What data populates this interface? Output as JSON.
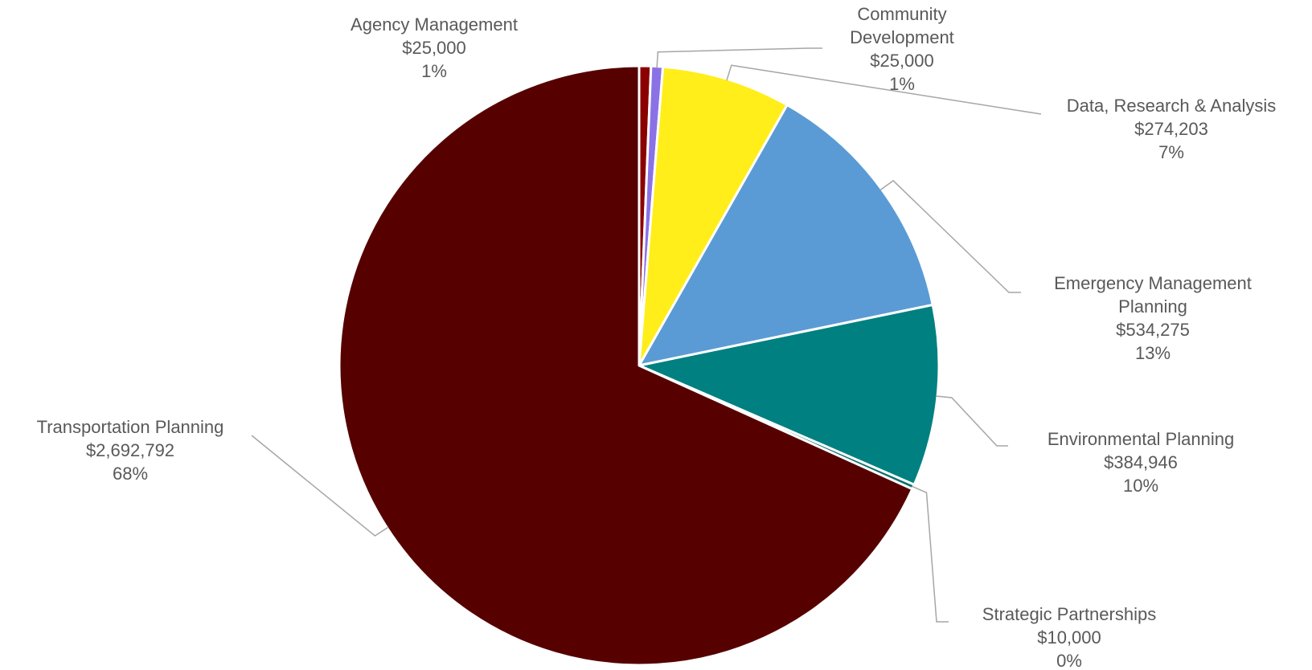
{
  "chart_data": {
    "type": "pie",
    "title": "",
    "start_angle_deg": 0,
    "slices": [
      {
        "name": "Agency Management",
        "value": 25000,
        "value_label": "$25,000",
        "percent_label": "1%",
        "color": "#8B0000"
      },
      {
        "name": "Community Development",
        "value": 25000,
        "value_label": "$25,000",
        "percent_label": "1%",
        "color": "#8A72E6"
      },
      {
        "name": "Data, Research & Analysis",
        "value": 274203,
        "value_label": "$274,203",
        "percent_label": "7%",
        "color": "#FFEE1A"
      },
      {
        "name": "Emergency Management Planning",
        "value": 534275,
        "value_label": "$534,275",
        "percent_label": "13%",
        "color": "#5B9BD5"
      },
      {
        "name": "Environmental Planning",
        "value": 384946,
        "value_label": "$384,946",
        "percent_label": "10%",
        "color": "#008080"
      },
      {
        "name": "Strategic Partnerships",
        "value": 10000,
        "value_label": "$10,000",
        "percent_label": "0%",
        "color": "#0B6E6E"
      },
      {
        "name": "Transportation Planning",
        "value": 2692792,
        "value_label": "$2,692,792",
        "percent_label": "68%",
        "color": "#560000"
      }
    ],
    "labels": [
      {
        "slice": 0,
        "lines": [
          "Agency Management",
          "$25,000",
          "1%"
        ]
      },
      {
        "slice": 1,
        "lines": [
          "Community",
          "Development",
          "$25,000",
          "1%"
        ]
      },
      {
        "slice": 2,
        "lines": [
          "Data, Research & Analysis",
          "$274,203",
          "7%"
        ]
      },
      {
        "slice": 3,
        "lines": [
          "Emergency Management",
          "Planning",
          "$534,275",
          "13%"
        ]
      },
      {
        "slice": 4,
        "lines": [
          "Environmental Planning",
          "$384,946",
          "10%"
        ]
      },
      {
        "slice": 5,
        "lines": [
          "Strategic Partnerships",
          "$10,000",
          "0%"
        ]
      },
      {
        "slice": 6,
        "lines": [
          "Transportation Planning",
          "$2,692,792",
          "68%"
        ]
      }
    ],
    "legend": "none"
  }
}
